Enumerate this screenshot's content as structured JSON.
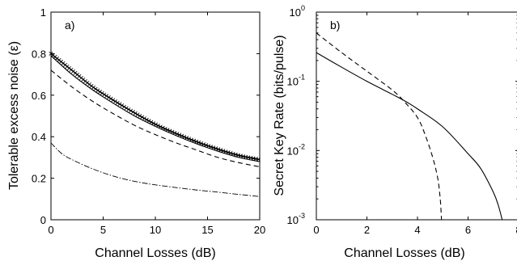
{
  "chart_data": [
    {
      "type": "line",
      "panel_label": "a)",
      "xlabel": "Channel Losses (dB)",
      "ylabel": "Tolerable excess noise (ε)",
      "xlim": [
        0,
        20
      ],
      "ylim": [
        0,
        1
      ],
      "xticks": [
        "0",
        "5",
        "10",
        "15",
        "20"
      ],
      "yticks": [
        "0",
        "0.2",
        "0.4",
        "0.6",
        "0.8",
        "1"
      ],
      "grid": false,
      "series": [
        {
          "style": "crosses",
          "x": [
            0,
            2,
            4,
            6,
            8,
            10,
            12,
            14,
            16,
            18,
            20
          ],
          "y": [
            0.8,
            0.72,
            0.64,
            0.575,
            0.515,
            0.46,
            0.415,
            0.375,
            0.34,
            0.31,
            0.29
          ]
        },
        {
          "style": "solid",
          "x": [
            0,
            2,
            4,
            6,
            8,
            10,
            12,
            14,
            16,
            18,
            20
          ],
          "y": [
            0.79,
            0.7,
            0.625,
            0.56,
            0.5,
            0.45,
            0.405,
            0.365,
            0.33,
            0.3,
            0.28
          ]
        },
        {
          "style": "dashed",
          "x": [
            0,
            2,
            4,
            6,
            8,
            10,
            12,
            14,
            16,
            18,
            20
          ],
          "y": [
            0.72,
            0.64,
            0.57,
            0.51,
            0.455,
            0.41,
            0.37,
            0.335,
            0.3,
            0.275,
            0.255
          ]
        },
        {
          "style": "dashdot",
          "x": [
            0,
            1,
            2,
            4,
            6,
            8,
            10,
            12,
            14,
            16,
            18,
            20
          ],
          "y": [
            0.37,
            0.32,
            0.29,
            0.245,
            0.21,
            0.185,
            0.168,
            0.155,
            0.143,
            0.133,
            0.122,
            0.112
          ]
        }
      ]
    },
    {
      "type": "line",
      "panel_label": "b)",
      "xlabel": "Channel Losses (dB)",
      "ylabel": "Secret Key Rate (bits/pulse)",
      "xlim": [
        0,
        8
      ],
      "ylim": [
        0.001,
        1
      ],
      "yscale": "log",
      "xticks": [
        "0",
        "2",
        "4",
        "6",
        "8"
      ],
      "yticks": [
        {
          "value": 0.001,
          "base": "10",
          "exp": "-3"
        },
        {
          "value": 0.01,
          "base": "10",
          "exp": "-2"
        },
        {
          "value": 0.1,
          "base": "10",
          "exp": "-1"
        },
        {
          "value": 1,
          "base": "10",
          "exp": "0"
        }
      ],
      "grid": false,
      "series": [
        {
          "style": "solid",
          "x": [
            0,
            1,
            2,
            3,
            3.5,
            4,
            5,
            6,
            6.5,
            7,
            7.2,
            7.35
          ],
          "y": [
            0.26,
            0.16,
            0.1,
            0.065,
            0.052,
            0.04,
            0.022,
            0.009,
            0.0055,
            0.0025,
            0.0016,
            0.001
          ]
        },
        {
          "style": "dashed",
          "x": [
            0,
            1,
            2,
            3,
            3.5,
            4,
            4.3,
            4.6,
            4.8,
            4.9,
            4.95
          ],
          "y": [
            0.5,
            0.26,
            0.14,
            0.075,
            0.05,
            0.03,
            0.017,
            0.008,
            0.004,
            0.002,
            0.001
          ]
        }
      ]
    }
  ]
}
